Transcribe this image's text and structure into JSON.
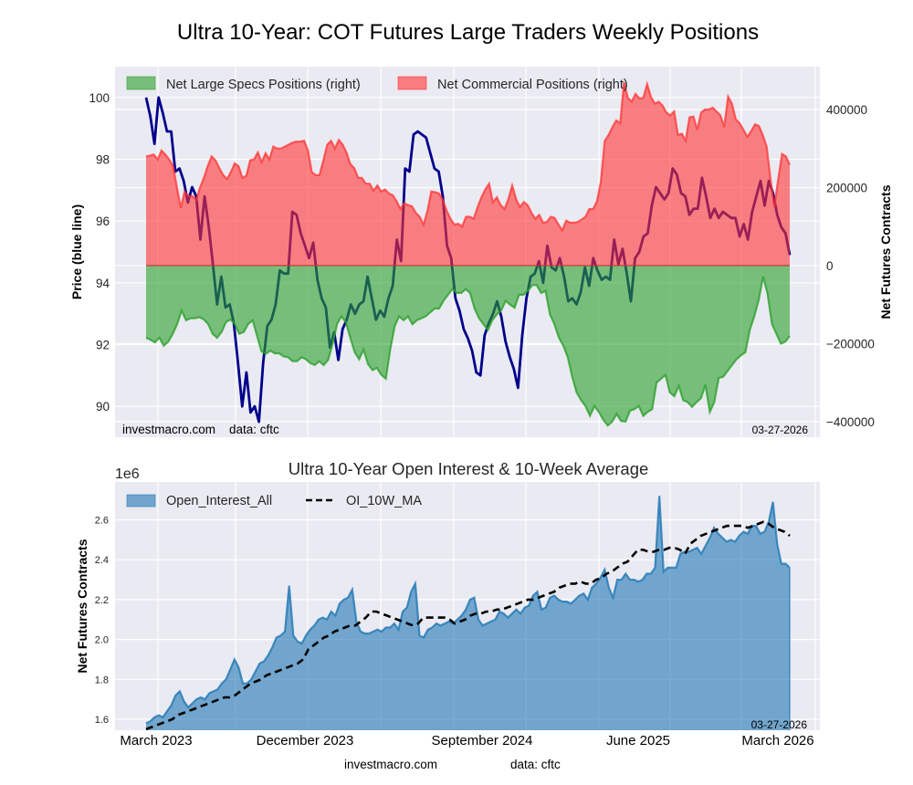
{
  "title": "Ultra 10-Year: COT Futures Large Traders Weekly Positions",
  "chart_data": [
    {
      "type": "area",
      "name": "positions",
      "title": "",
      "ylabel_left": "Price (blue line)",
      "ylabel_right": "Net Futures Contracts",
      "ylim_left": [
        89.0,
        101.0
      ],
      "ylim_right": [
        -440000,
        510000
      ],
      "yticks_left": [
        "90",
        "92",
        "94",
        "96",
        "98",
        "100"
      ],
      "yticks_left_values": [
        90,
        92,
        94,
        96,
        98,
        100
      ],
      "yticks_right": [
        "-400000",
        "-200000",
        "0",
        "200000",
        "400000"
      ],
      "yticks_right_values": [
        -400000,
        -200000,
        0,
        200000,
        400000
      ],
      "legend": [
        "Net Large Specs Positions (right)",
        "Net Commercial Positions (right)"
      ],
      "legend_position": "top-left",
      "grid": true,
      "colors": {
        "specs": "#2ca02c",
        "commercial": "#ff3333",
        "price": "#00008b",
        "price_overlap": "#6b0047"
      },
      "weeks": 157,
      "series": [
        {
          "name": "Net Commercial Positions (right)",
          "axis": "right",
          "values": [
            280000,
            282000,
            285000,
            272000,
            295000,
            285000,
            272000,
            255000,
            200000,
            148000,
            190000,
            178000,
            178000,
            168000,
            200000,
            225000,
            255000,
            280000,
            270000,
            250000,
            232000,
            222000,
            240000,
            262000,
            255000,
            225000,
            230000,
            270000,
            272000,
            290000,
            265000,
            288000,
            272000,
            305000,
            300000,
            300000,
            305000,
            310000,
            315000,
            318000,
            318000,
            320000,
            295000,
            240000,
            232000,
            232000,
            270000,
            310000,
            320000,
            300000,
            322000,
            310000,
            290000,
            260000,
            250000,
            225000,
            225000,
            210000,
            210000,
            192000,
            205000,
            190000,
            195000,
            185000,
            180000,
            165000,
            145000,
            160000,
            155000,
            152000,
            135000,
            125000,
            105000,
            140000,
            190000,
            188000,
            185000,
            168000,
            140000,
            120000,
            105000,
            107000,
            100000,
            125000,
            125000,
            120000,
            150000,
            175000,
            195000,
            210000,
            162000,
            175000,
            155000,
            145000,
            170000,
            205000,
            170000,
            150000,
            163000,
            155000,
            135000,
            120000,
            130000,
            110000,
            112000,
            125000,
            122000,
            105000,
            90000,
            115000,
            110000,
            110000,
            112000,
            118000,
            125000,
            145000,
            145000,
            165000,
            215000,
            320000,
            335000,
            355000,
            372000,
            365000,
            470000,
            430000,
            420000,
            440000,
            428000,
            430000,
            465000,
            432000,
            415000,
            420000,
            410000,
            392000,
            385000,
            395000,
            335000,
            338000,
            320000,
            380000,
            382000,
            348000,
            392000,
            400000,
            400000,
            405000,
            395000,
            385000,
            355000,
            433000,
            415000,
            375000,
            365000,
            348000,
            330000,
            345000,
            362000,
            358000,
            335000,
            305000,
            222000,
            150000,
            220000,
            286000,
            280000,
            258000
          ],
          "color": "#ff3333"
        },
        {
          "name": "Net Large Specs Positions (right)",
          "axis": "right",
          "values": [
            -185000,
            -190000,
            -197000,
            -185000,
            -205000,
            -195000,
            -175000,
            -150000,
            -115000,
            -140000,
            -135000,
            -135000,
            -132000,
            -138000,
            -150000,
            -175000,
            -185000,
            -170000,
            -145000,
            -138000,
            -150000,
            -175000,
            -170000,
            -150000,
            -140000,
            -180000,
            -220000,
            -226000,
            -218000,
            -225000,
            -225000,
            -233000,
            -235000,
            -245000,
            -245000,
            -235000,
            -240000,
            -250000,
            -255000,
            -245000,
            -255000,
            -242000,
            -202000,
            -150000,
            -130000,
            -145000,
            -185000,
            -222000,
            -240000,
            -215000,
            -252000,
            -268000,
            -262000,
            -280000,
            -290000,
            -215000,
            -155000,
            -130000,
            -140000,
            -130000,
            -150000,
            -140000,
            -135000,
            -130000,
            -120000,
            -110000,
            -110000,
            -90000,
            -75000,
            -60000,
            -70000,
            -70000,
            -60000,
            -70000,
            -110000,
            -135000,
            -150000,
            -165000,
            -140000,
            -125000,
            -115000,
            -90000,
            -100000,
            -108000,
            -75000,
            -75000,
            -65000,
            -50000,
            -50000,
            -70000,
            -65000,
            -125000,
            -150000,
            -185000,
            -205000,
            -235000,
            -285000,
            -325000,
            -345000,
            -360000,
            -385000,
            -360000,
            -375000,
            -395000,
            -410000,
            -400000,
            -380000,
            -398000,
            -400000,
            -372000,
            -368000,
            -360000,
            -385000,
            -375000,
            -368000,
            -300000,
            -290000,
            -280000,
            -325000,
            -335000,
            -308000,
            -345000,
            -350000,
            -362000,
            -350000,
            -340000,
            -305000,
            -375000,
            -350000,
            -288000,
            -285000,
            -270000,
            -255000,
            -240000,
            -230000,
            -222000,
            -165000,
            -130000,
            -88000,
            -28000,
            -72000,
            -150000,
            -175000,
            -200000,
            -195000,
            -180000
          ],
          "color": "#2ca02c"
        },
        {
          "name": "Price (blue line)",
          "axis": "left",
          "values": [
            100.0,
            99.4,
            98.5,
            100.0,
            99.5,
            98.9,
            98.9,
            97.6,
            97.7,
            97.3,
            96.6,
            97.1,
            96.8,
            95.4,
            96.8,
            95.8,
            94.6,
            93.3,
            94.2,
            93.2,
            93.3,
            92.7,
            91.4,
            90.0,
            91.1,
            89.8,
            90.0,
            89.5,
            91.4,
            92.6,
            92.8,
            93.3,
            94.4,
            94.3,
            94.3,
            96.3,
            96.2,
            95.6,
            95.2,
            94.8,
            95.3,
            94.1,
            93.5,
            93.2,
            91.9,
            92.4,
            91.5,
            92.5,
            92.8,
            93.3,
            93.0,
            93.3,
            93.4,
            94.2,
            93.5,
            92.8,
            93.1,
            92.9,
            93.5,
            93.9,
            95.4,
            94.7,
            97.7,
            97.6,
            98.8,
            98.9,
            98.8,
            98.7,
            98.2,
            97.7,
            97.6,
            96.8,
            95.2,
            94.8,
            93.5,
            93.1,
            92.5,
            92.2,
            91.8,
            91.1,
            91.0,
            92.3,
            92.7,
            93.0,
            93.4,
            92.9,
            92.1,
            91.6,
            91.2,
            90.6,
            92.3,
            93.5,
            94.2,
            94.3,
            94.7,
            94.0,
            95.2,
            94.5,
            94.4,
            94.8,
            94.2,
            93.4,
            93.5,
            93.3,
            93.7,
            94.5,
            93.9,
            94.8,
            94.4,
            94.1,
            94.2,
            94.1,
            95.4,
            94.6,
            95.1,
            94.3,
            93.4,
            94.8,
            95.0,
            95.5,
            95.6,
            96.5,
            97.1,
            96.9,
            96.7,
            96.9,
            97.7,
            97.5,
            96.9,
            96.8,
            96.2,
            96.4,
            96.4,
            97.4,
            96.8,
            96.1,
            96.4,
            96.1,
            96.3,
            96.2,
            96.1,
            96.1,
            95.5,
            95.9,
            95.4,
            96.3,
            96.8,
            97.3,
            96.5,
            97.3,
            96.9,
            96.2,
            95.8,
            95.6,
            94.9
          ],
          "color": "#00008b"
        }
      ],
      "annotations": [
        "investmacro.com    data: cftc",
        "03-27-2026"
      ]
    },
    {
      "type": "area",
      "name": "open_interest",
      "title": "Ultra 10-Year Open Interest & 10-Week Average",
      "ylabel": "Net Futures Contracts",
      "offset_label": "1e6",
      "ylim": [
        1.545,
        2.79
      ],
      "yticks": [
        "1.6",
        "1.8",
        "2.0",
        "2.2",
        "2.4",
        "2.6"
      ],
      "yticks_values": [
        1.6,
        1.8,
        2.0,
        2.2,
        2.4,
        2.6
      ],
      "xticks": [
        "March 2023",
        "December 2023",
        "September 2024",
        "June 2025",
        "March 2026"
      ],
      "xtick_positions_weeks": [
        3,
        42,
        81,
        120,
        159
      ],
      "legend": [
        "Open_Interest_All",
        "OI_10W_MA"
      ],
      "legend_position": "top-left",
      "grid": true,
      "weeks": 157,
      "series": [
        {
          "name": "Open_Interest_All",
          "unit": "1e6 contracts",
          "values": [
            1.58,
            1.59,
            1.61,
            1.62,
            1.61,
            1.64,
            1.67,
            1.72,
            1.74,
            1.69,
            1.66,
            1.68,
            1.7,
            1.71,
            1.7,
            1.73,
            1.74,
            1.75,
            1.78,
            1.8,
            1.85,
            1.9,
            1.86,
            1.78,
            1.78,
            1.8,
            1.84,
            1.88,
            1.89,
            1.92,
            1.96,
            2.01,
            2.02,
            2.04,
            2.27,
            2.02,
            1.99,
            1.98,
            2.02,
            2.05,
            2.07,
            2.1,
            2.11,
            2.1,
            2.14,
            2.12,
            2.18,
            2.2,
            2.21,
            2.25,
            2.09,
            2.04,
            2.03,
            2.03,
            2.04,
            2.05,
            2.04,
            2.06,
            2.06,
            2.08,
            2.05,
            2.14,
            2.16,
            2.24,
            2.28,
            2.02,
            2.01,
            2.05,
            2.06,
            2.08,
            2.07,
            2.08,
            2.09,
            2.08,
            2.1,
            2.12,
            2.15,
            2.2,
            2.21,
            2.1,
            2.07,
            2.08,
            2.09,
            2.1,
            2.14,
            2.13,
            2.11,
            2.13,
            2.15,
            2.13,
            2.16,
            2.17,
            2.22,
            2.24,
            2.15,
            2.16,
            2.21,
            2.22,
            2.2,
            2.19,
            2.19,
            2.18,
            2.2,
            2.22,
            2.23,
            2.2,
            2.26,
            2.28,
            2.31,
            2.35,
            2.26,
            2.21,
            2.3,
            2.3,
            2.33,
            2.3,
            2.3,
            2.29,
            2.3,
            2.33,
            2.33,
            2.36,
            2.72,
            2.34,
            2.36,
            2.36,
            2.36,
            2.43,
            2.44,
            2.44,
            2.45,
            2.46,
            2.43,
            2.47,
            2.51,
            2.56,
            2.53,
            2.51,
            2.49,
            2.5,
            2.49,
            2.52,
            2.54,
            2.53,
            2.57,
            2.57,
            2.53,
            2.54,
            2.59,
            2.69,
            2.48,
            2.38,
            2.38,
            2.36
          ],
          "color": "#1f77b4"
        },
        {
          "name": "OI_10W_MA",
          "unit": "1e6 contracts",
          "values": [
            1.55,
            1.56,
            1.57,
            1.58,
            1.59,
            1.6,
            1.62,
            1.63,
            1.64,
            1.65,
            1.66,
            1.67,
            1.68,
            1.69,
            1.7,
            1.71,
            1.71,
            1.72,
            1.74,
            1.76,
            1.78,
            1.79,
            1.8,
            1.82,
            1.83,
            1.84,
            1.85,
            1.86,
            1.87,
            1.88,
            1.9,
            1.95,
            1.97,
            1.99,
            2.01,
            2.02,
            2.04,
            2.05,
            2.06,
            2.07,
            2.07,
            2.09,
            2.11,
            2.14,
            2.14,
            2.13,
            2.12,
            2.11,
            2.1,
            2.09,
            2.08,
            2.07,
            2.08,
            2.11,
            2.11,
            2.11,
            2.11,
            2.11,
            2.1,
            2.08,
            2.09,
            2.1,
            2.12,
            2.13,
            2.13,
            2.14,
            2.14,
            2.15,
            2.15,
            2.16,
            2.17,
            2.18,
            2.19,
            2.2,
            2.2,
            2.21,
            2.22,
            2.23,
            2.24,
            2.26,
            2.27,
            2.28,
            2.28,
            2.29,
            2.28,
            2.28,
            2.3,
            2.31,
            2.33,
            2.34,
            2.36,
            2.38,
            2.39,
            2.42,
            2.45,
            2.45,
            2.44,
            2.44,
            2.45,
            2.45,
            2.46,
            2.46,
            2.45,
            2.43,
            2.48,
            2.5,
            2.52,
            2.53,
            2.54,
            2.55,
            2.56,
            2.57,
            2.57,
            2.57,
            2.57,
            2.56,
            2.57,
            2.58,
            2.59,
            2.58,
            2.56,
            2.55,
            2.54,
            2.52
          ],
          "color": "#000000",
          "style": "dashed"
        }
      ],
      "annotations": [
        "03-27-2026"
      ]
    }
  ],
  "top_chart": {
    "legend_specs": "Net Large Specs Positions (right)",
    "legend_commercial": "Net Commercial Positions (right)",
    "ylabel_left": "Price (blue line)",
    "ylabel_right": "Net Futures Contracts",
    "watermark": "investmacro.com    data: cftc",
    "date": "03-27-2026"
  },
  "bottom_chart": {
    "title": "Ultra 10-Year Open Interest & 10-Week Average",
    "offset_label": "1e6",
    "ylabel": "Net Futures Contracts",
    "legend_oi": "Open_Interest_All",
    "legend_ma": "OI_10W_MA",
    "date": "03-27-2026"
  },
  "footer": {
    "site": "investmacro.com",
    "data_source": "data: cftc"
  }
}
